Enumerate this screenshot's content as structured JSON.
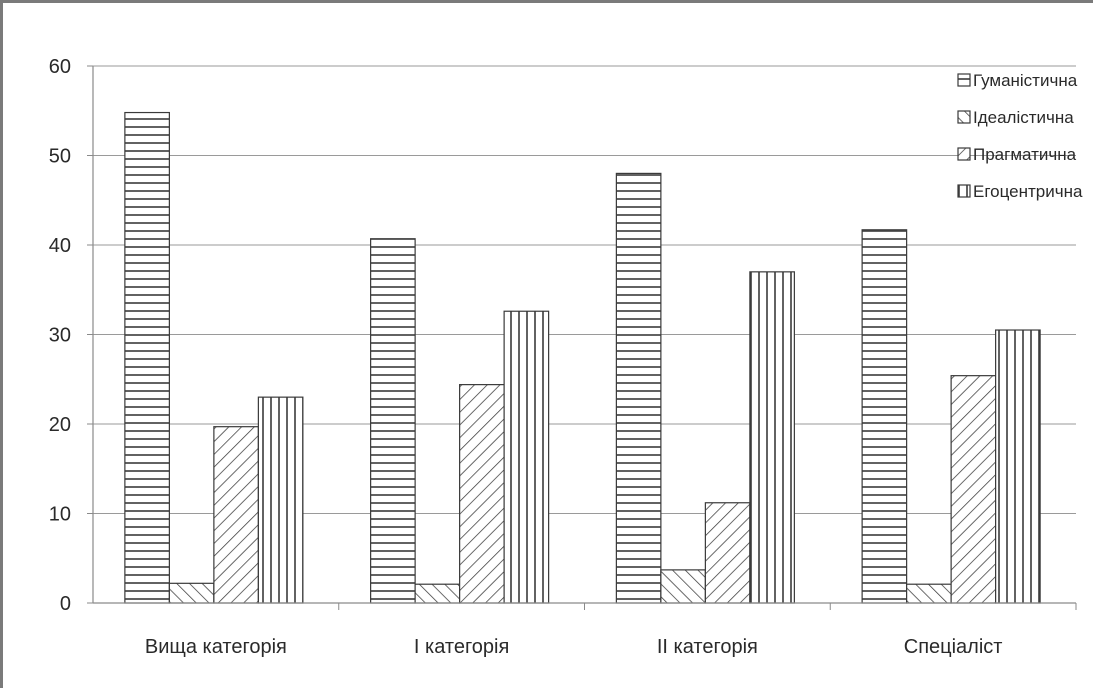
{
  "chart_data": {
    "type": "bar",
    "categories": [
      "Вища категорія",
      "І категорія",
      "ІІ категорія",
      "Спеціаліст"
    ],
    "series": [
      {
        "name": "Гуманістична",
        "pattern": "horizontal",
        "values": [
          54.8,
          40.7,
          48.0,
          41.7
        ]
      },
      {
        "name": "Ідеалістична",
        "pattern": "backslash",
        "values": [
          2.2,
          2.1,
          3.7,
          2.1
        ]
      },
      {
        "name": "Прагматична",
        "pattern": "slash",
        "values": [
          19.7,
          24.4,
          11.2,
          25.4
        ]
      },
      {
        "name": "Егоцентрична",
        "pattern": "vertical",
        "values": [
          23.0,
          32.6,
          37.0,
          30.5
        ]
      }
    ],
    "ylim": [
      0,
      60
    ],
    "yticks": [
      "0",
      "10",
      "20",
      "30",
      "40",
      "50",
      "60"
    ],
    "grid": true,
    "legend_position": "top-right",
    "title": "",
    "xlabel": "",
    "ylabel": "",
    "colors": {
      "bar_fill": "#ffffff",
      "bar_stroke": "#3a3a3a",
      "grid": "#9a9a9a",
      "axis": "#8a8a8a",
      "text": "#2a2a2a"
    }
  }
}
